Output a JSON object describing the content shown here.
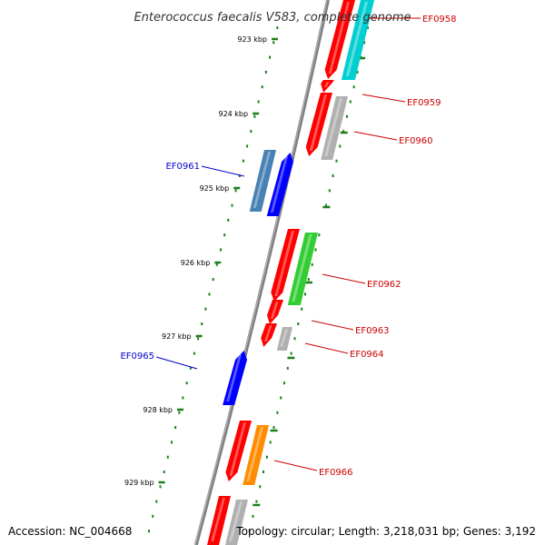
{
  "title": "Enterococcus faecalis V583, complete genome",
  "footer": {
    "accession": "Accession: NC_004668",
    "summary": "Topology: circular; Length: 3,218,031 bp; Genes: 3,192"
  },
  "colors": {
    "forward": "#ff0000",
    "reverse_dark": "#0000ff",
    "reverse_steel": "#4682b4",
    "cyan": "#00ced1",
    "green": "#32cd32",
    "orange": "#ff8c00",
    "gray": "#b0b0b0",
    "tick": "#1a7f1a",
    "label_forward": "#cc0000",
    "label_reverse": "#0000cc"
  },
  "ticks": [
    "923 kbp",
    "924 kbp",
    "925 kbp",
    "926 kbp",
    "927 kbp",
    "928 kbp",
    "929 kbp"
  ],
  "genes": [
    {
      "label": "EF0958",
      "strand": "forward"
    },
    {
      "label": "EF0959",
      "strand": "forward"
    },
    {
      "label": "EF0960",
      "strand": "forward"
    },
    {
      "label": "EF0961",
      "strand": "reverse"
    },
    {
      "label": "EF0962",
      "strand": "forward"
    },
    {
      "label": "EF0963",
      "strand": "forward"
    },
    {
      "label": "EF0964",
      "strand": "forward"
    },
    {
      "label": "EF0965",
      "strand": "reverse"
    },
    {
      "label": "EF0966",
      "strand": "forward"
    }
  ]
}
